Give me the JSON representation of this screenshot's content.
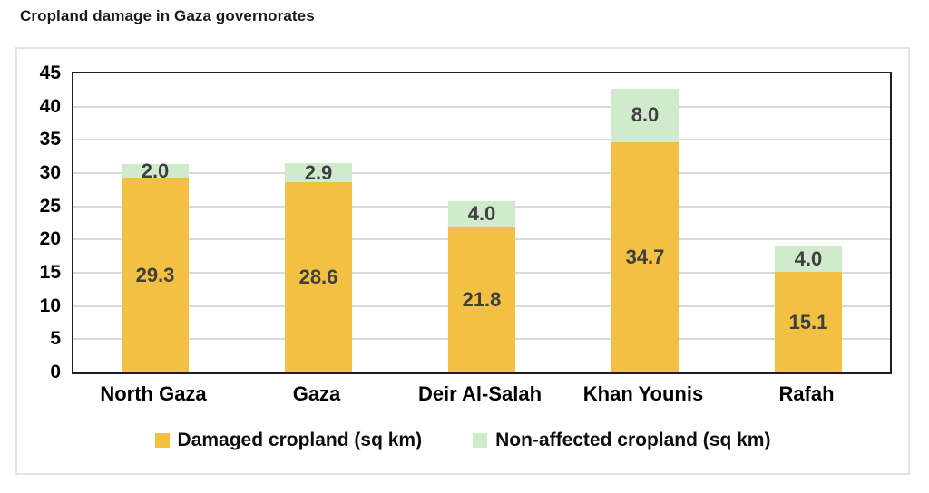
{
  "title": "Cropland damage in Gaza governorates",
  "colors": {
    "damaged": "#F2C143",
    "non_affected": "#D0EACC",
    "data_label": "#3F3F3F",
    "gridline": "#D9D9D9",
    "plot_border": "#1F1F1F",
    "card_border": "#E3E3E3",
    "axis_text": "#000000"
  },
  "chart_data": {
    "type": "bar",
    "stacked": true,
    "title": "Cropland damage in Gaza governorates",
    "categories": [
      "North Gaza",
      "Gaza",
      "Deir Al-Salah",
      "Khan Younis",
      "Rafah"
    ],
    "series": [
      {
        "name": "Damaged cropland (sq km)",
        "values": [
          29.3,
          28.6,
          21.8,
          34.7,
          15.1
        ],
        "color": "#F2C143"
      },
      {
        "name": "Non-affected cropland (sq km)",
        "values": [
          2.0,
          2.9,
          4.0,
          8.0,
          4.0
        ],
        "color": "#D0EACC"
      }
    ],
    "ylim": [
      0,
      45
    ],
    "ytick_step": 5,
    "ytick_labels": [
      "0",
      "5",
      "10",
      "15",
      "20",
      "25",
      "30",
      "35",
      "40",
      "45"
    ],
    "grid": true,
    "legend_position": "bottom",
    "data_label_format": "one_decimal"
  }
}
